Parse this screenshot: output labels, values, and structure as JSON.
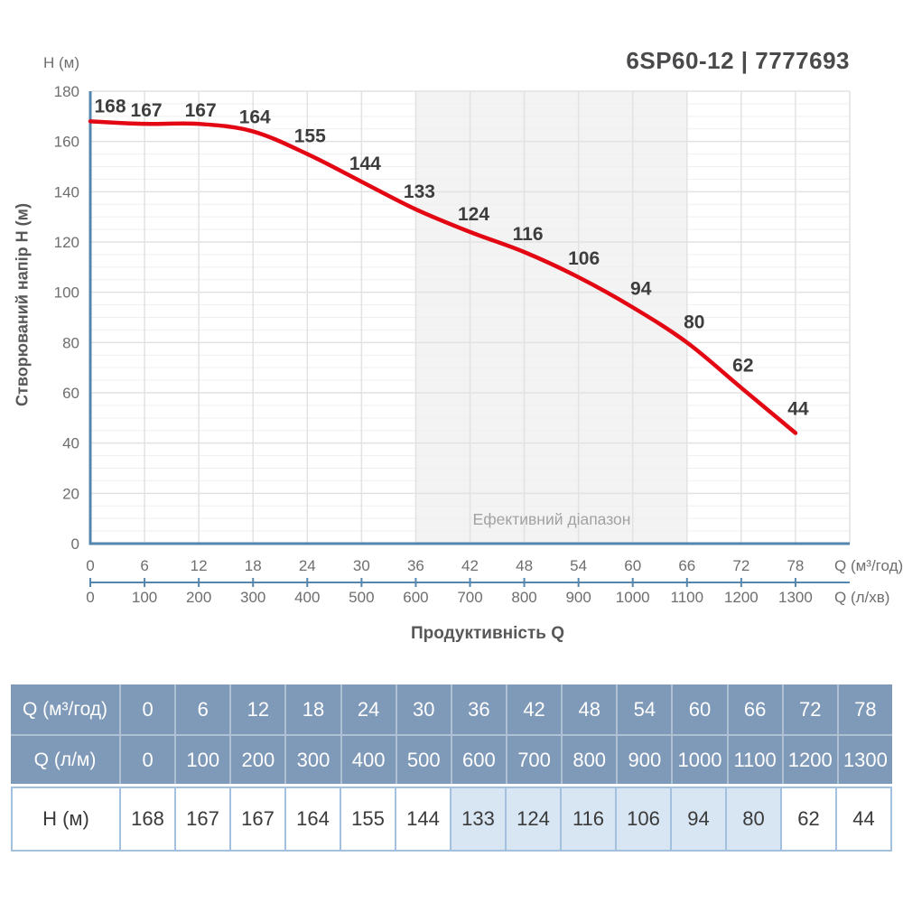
{
  "page": {
    "title": "6SP60-12 | 7777693"
  },
  "chart": {
    "h_unit_label": "H (м)",
    "y_axis_title": "Створюваний напір H (м)",
    "x_axis_title": "Продуктивність Q",
    "x1_unit_label": "Q (м³/год)",
    "x2_unit_label": "Q (л/хв)",
    "band_label": "Ефективний діапазон"
  },
  "chart_data": {
    "type": "line",
    "title": "6SP60-12 | 7777693",
    "xlabel": "Продуктивність Q",
    "ylabel": "Створюваний напір H (м)",
    "x_m3h": [
      0,
      6,
      12,
      18,
      24,
      30,
      36,
      42,
      48,
      54,
      60,
      66,
      72,
      78
    ],
    "x_lmin": [
      0,
      100,
      200,
      300,
      400,
      500,
      600,
      700,
      800,
      900,
      1000,
      1100,
      1200,
      1300
    ],
    "series": [
      {
        "name": "H (м)",
        "values": [
          168,
          167,
          167,
          164,
          155,
          144,
          133,
          124,
          116,
          106,
          94,
          80,
          62,
          44
        ]
      }
    ],
    "ylim": [
      0,
      180
    ],
    "y_major_tick_step": 20,
    "y_minor_tick_step": 5,
    "xlim_m3h": [
      0,
      84
    ],
    "effective_range_m3h": [
      36,
      66
    ],
    "grid": true,
    "legend": "none",
    "colors": {
      "curve": "#e30613",
      "axis": "#5586ad",
      "band": "#f3f3f3"
    }
  },
  "table": {
    "rows": [
      {
        "label": "Q (м³/год)",
        "style": "header",
        "values": [
          "0",
          "6",
          "12",
          "18",
          "24",
          "30",
          "36",
          "42",
          "48",
          "54",
          "60",
          "66",
          "72",
          "78"
        ]
      },
      {
        "label": "Q (л/м)",
        "style": "header second",
        "values": [
          "0",
          "100",
          "200",
          "300",
          "400",
          "500",
          "600",
          "700",
          "800",
          "900",
          "1000",
          "1100",
          "1200",
          "1300"
        ]
      },
      {
        "label": "H (м)",
        "style": "values",
        "highlight_cols": [
          6,
          7,
          8,
          9,
          10,
          11
        ],
        "values": [
          "168",
          "167",
          "167",
          "164",
          "155",
          "144",
          "133",
          "124",
          "116",
          "106",
          "94",
          "80",
          "62",
          "44"
        ]
      }
    ]
  }
}
